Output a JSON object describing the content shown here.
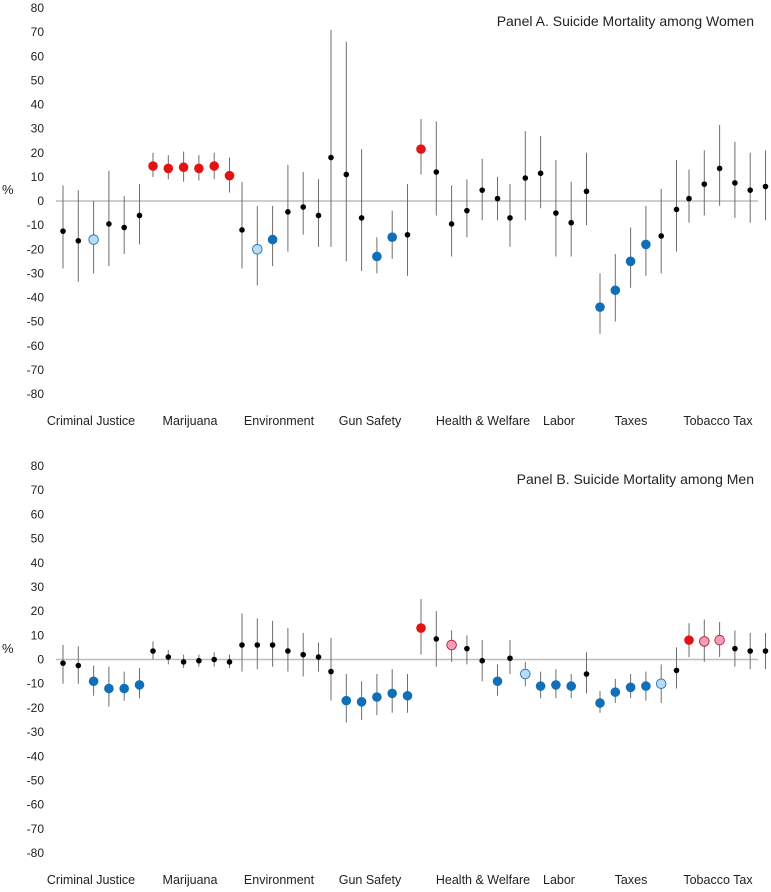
{
  "chart_data": [
    {
      "type": "scatter",
      "title": "Panel A. Suicide Mortality among Women",
      "ylabel": "%",
      "xlabel": "",
      "ylim": [
        -80,
        80
      ],
      "yticks": [
        80,
        70,
        60,
        50,
        40,
        30,
        20,
        10,
        0,
        -10,
        -20,
        -30,
        -40,
        -50,
        -60,
        -70,
        -80
      ],
      "categories": [
        "Criminal Justice",
        "Marijuana",
        "Environment",
        "Gun Safety",
        "Health & Welfare",
        "Labor",
        "Taxes",
        "Tobacco Tax"
      ],
      "colors": {
        "black": "#000000",
        "red": "#e41313",
        "pink": "#f2a1b2",
        "blue": "#0f6fb8",
        "lightblue": "#b7dcf5"
      },
      "groups": [
        {
          "category": "Criminal Justice",
          "points": [
            {
              "value": -12.5,
              "low": -28,
              "high": 6.5,
              "style": "black"
            },
            {
              "value": -16.5,
              "low": -33.5,
              "high": 4.5,
              "style": "black"
            },
            {
              "value": -16,
              "low": -30,
              "high": 0,
              "style": "lightblue"
            },
            {
              "value": -9.5,
              "low": -27,
              "high": 12.5,
              "style": "black"
            },
            {
              "value": -11,
              "low": -22,
              "high": 2,
              "style": "black"
            },
            {
              "value": -6,
              "low": -18,
              "high": 7,
              "style": "black"
            }
          ]
        },
        {
          "category": "Marijuana",
          "points": [
            {
              "value": 14.5,
              "low": 10,
              "high": 20,
              "style": "red"
            },
            {
              "value": 13.5,
              "low": 9,
              "high": 19,
              "style": "red"
            },
            {
              "value": 14,
              "low": 8,
              "high": 20.5,
              "style": "red"
            },
            {
              "value": 13.5,
              "low": 8.5,
              "high": 19,
              "style": "red"
            },
            {
              "value": 14.5,
              "low": 9,
              "high": 20,
              "style": "red"
            },
            {
              "value": 10.5,
              "low": 3.5,
              "high": 18,
              "style": "red"
            }
          ]
        },
        {
          "category": "Environment",
          "points": [
            {
              "value": -12,
              "low": -28,
              "high": 8,
              "style": "black"
            },
            {
              "value": -20,
              "low": -35,
              "high": -2,
              "style": "lightblue"
            },
            {
              "value": -16,
              "low": -27,
              "high": -2,
              "style": "blue"
            },
            {
              "value": -4.5,
              "low": -21,
              "high": 15,
              "style": "black"
            },
            {
              "value": -2.5,
              "low": -14,
              "high": 12,
              "style": "black"
            },
            {
              "value": -6,
              "low": -19,
              "high": 9,
              "style": "black"
            }
          ]
        },
        {
          "category": "Gun Safety",
          "points": [
            {
              "value": 18,
              "low": -19,
              "high": 71,
              "style": "black"
            },
            {
              "value": 11,
              "low": -25,
              "high": 66,
              "style": "black"
            },
            {
              "value": -7,
              "low": -29,
              "high": 21.5,
              "style": "black"
            },
            {
              "value": -23,
              "low": -30,
              "high": -15,
              "style": "blue"
            },
            {
              "value": -15,
              "low": -24,
              "high": -4,
              "style": "blue"
            },
            {
              "value": -14,
              "low": -31,
              "high": 7,
              "style": "black"
            }
          ]
        },
        {
          "category": "Health & Welfare",
          "points": [
            {
              "value": 21.5,
              "low": 11,
              "high": 34,
              "style": "red"
            },
            {
              "value": 12,
              "low": -6,
              "high": 33,
              "style": "black"
            },
            {
              "value": -9.5,
              "low": -23,
              "high": 6.5,
              "style": "black"
            },
            {
              "value": -4,
              "low": -15,
              "high": 9,
              "style": "black"
            },
            {
              "value": 4.5,
              "low": -8,
              "high": 17.5,
              "style": "black"
            },
            {
              "value": 1,
              "low": -8,
              "high": 10,
              "style": "black"
            }
          ]
        },
        {
          "category": "Labor",
          "points": [
            {
              "value": -7,
              "low": -19,
              "high": 7,
              "style": "black"
            },
            {
              "value": 9.5,
              "low": -8,
              "high": 29,
              "style": "black"
            },
            {
              "value": 11.5,
              "low": -3,
              "high": 27,
              "style": "black"
            },
            {
              "value": -5,
              "low": -23,
              "high": 17,
              "style": "black"
            },
            {
              "value": -9,
              "low": -23,
              "high": 8,
              "style": "black"
            },
            {
              "value": 4,
              "low": -10,
              "high": 20,
              "style": "black"
            }
          ]
        },
        {
          "category": "Taxes",
          "points": [
            {
              "value": -44,
              "low": -55,
              "high": -30,
              "style": "blue"
            },
            {
              "value": -37,
              "low": -50,
              "high": -22,
              "style": "blue"
            },
            {
              "value": -25,
              "low": -36,
              "high": -11,
              "style": "blue"
            },
            {
              "value": -18,
              "low": -31,
              "high": -2,
              "style": "blue"
            },
            {
              "value": -14.5,
              "low": -30,
              "high": 5,
              "style": "black"
            },
            {
              "value": -3.5,
              "low": -21,
              "high": 17,
              "style": "black"
            }
          ]
        },
        {
          "category": "Tobacco Tax",
          "points": [
            {
              "value": 1,
              "low": -9,
              "high": 13,
              "style": "black"
            },
            {
              "value": 7,
              "low": -6,
              "high": 21,
              "style": "black"
            },
            {
              "value": 13.5,
              "low": -2,
              "high": 31.5,
              "style": "black"
            },
            {
              "value": 7.5,
              "low": -7,
              "high": 24.5,
              "style": "black"
            },
            {
              "value": 4.5,
              "low": -9,
              "high": 20,
              "style": "black"
            },
            {
              "value": 6,
              "low": -8,
              "high": 21,
              "style": "black"
            }
          ]
        }
      ]
    },
    {
      "type": "scatter",
      "title": "Panel B. Suicide Mortality among Men",
      "ylabel": "%",
      "xlabel": "",
      "ylim": [
        -80,
        80
      ],
      "yticks": [
        80,
        70,
        60,
        50,
        40,
        30,
        20,
        10,
        0,
        -10,
        -20,
        -30,
        -40,
        -50,
        -60,
        -70,
        -80
      ],
      "categories": [
        "Criminal Justice",
        "Marijuana",
        "Environment",
        "Gun Safety",
        "Health & Welfare",
        "Labor",
        "Taxes",
        "Tobacco Tax"
      ],
      "colors": {
        "black": "#000000",
        "red": "#e41313",
        "pink": "#f2a1b2",
        "blue": "#0f6fb8",
        "lightblue": "#b7dcf5"
      },
      "groups": [
        {
          "category": "Criminal Justice",
          "points": [
            {
              "value": -1.5,
              "low": -10,
              "high": 6,
              "style": "black"
            },
            {
              "value": -2.5,
              "low": -10,
              "high": 5.5,
              "style": "black"
            },
            {
              "value": -9,
              "low": -15,
              "high": -2.5,
              "style": "blue"
            },
            {
              "value": -12,
              "low": -19.5,
              "high": -3,
              "style": "blue"
            },
            {
              "value": -12,
              "low": -17,
              "high": -5,
              "style": "blue"
            },
            {
              "value": -10.5,
              "low": -16,
              "high": -3.5,
              "style": "blue"
            }
          ]
        },
        {
          "category": "Marijuana",
          "points": [
            {
              "value": 3.5,
              "low": 0,
              "high": 7.5,
              "style": "black"
            },
            {
              "value": 1,
              "low": -2,
              "high": 4,
              "style": "black"
            },
            {
              "value": -1,
              "low": -3.5,
              "high": 2,
              "style": "black"
            },
            {
              "value": -0.5,
              "low": -3,
              "high": 2,
              "style": "black"
            },
            {
              "value": 0,
              "low": -3,
              "high": 3,
              "style": "black"
            },
            {
              "value": -1,
              "low": -3.5,
              "high": 2,
              "style": "black"
            }
          ]
        },
        {
          "category": "Environment",
          "points": [
            {
              "value": 6,
              "low": -5,
              "high": 19,
              "style": "black"
            },
            {
              "value": 6,
              "low": -4,
              "high": 17,
              "style": "black"
            },
            {
              "value": 6,
              "low": -3,
              "high": 16,
              "style": "black"
            },
            {
              "value": 3.5,
              "low": -5,
              "high": 13,
              "style": "black"
            },
            {
              "value": 2,
              "low": -7,
              "high": 11,
              "style": "black"
            },
            {
              "value": 1,
              "low": -5,
              "high": 7,
              "style": "black"
            }
          ]
        },
        {
          "category": "Gun Safety",
          "points": [
            {
              "value": -5,
              "low": -17,
              "high": 9,
              "style": "black"
            },
            {
              "value": -17,
              "low": -26,
              "high": -6,
              "style": "blue"
            },
            {
              "value": -17.5,
              "low": -25,
              "high": -9,
              "style": "blue"
            },
            {
              "value": -15.5,
              "low": -23,
              "high": -6,
              "style": "blue"
            },
            {
              "value": -14,
              "low": -22,
              "high": -4,
              "style": "blue"
            },
            {
              "value": -15,
              "low": -22,
              "high": -6,
              "style": "blue"
            }
          ]
        },
        {
          "category": "Health & Welfare",
          "points": [
            {
              "value": 13,
              "low": 2,
              "high": 25,
              "style": "red"
            },
            {
              "value": 8.5,
              "low": -3,
              "high": 20,
              "style": "black"
            },
            {
              "value": 6,
              "low": -1,
              "high": 12,
              "style": "pink"
            },
            {
              "value": 4.5,
              "low": -2,
              "high": 10,
              "style": "black"
            },
            {
              "value": -0.5,
              "low": -9,
              "high": 8,
              "style": "black"
            },
            {
              "value": -9,
              "low": -15,
              "high": -2,
              "style": "blue"
            }
          ]
        },
        {
          "category": "Labor",
          "points": [
            {
              "value": 0.5,
              "low": -6,
              "high": 8,
              "style": "black"
            },
            {
              "value": -6,
              "low": -11,
              "high": -1,
              "style": "lightblue"
            },
            {
              "value": -11,
              "low": -16,
              "high": -5,
              "style": "blue"
            },
            {
              "value": -10.5,
              "low": -16,
              "high": -4,
              "style": "blue"
            },
            {
              "value": -11,
              "low": -16,
              "high": -6,
              "style": "blue"
            },
            {
              "value": -6,
              "low": -14,
              "high": 3,
              "style": "black"
            }
          ]
        },
        {
          "category": "Taxes",
          "points": [
            {
              "value": -18,
              "low": -22,
              "high": -13,
              "style": "blue"
            },
            {
              "value": -13.5,
              "low": -18,
              "high": -8,
              "style": "blue"
            },
            {
              "value": -11.5,
              "low": -16,
              "high": -6,
              "style": "blue"
            },
            {
              "value": -11,
              "low": -17,
              "high": -5,
              "style": "blue"
            },
            {
              "value": -10,
              "low": -18,
              "high": -2,
              "style": "lightblue"
            },
            {
              "value": -4.5,
              "low": -12,
              "high": 5,
              "style": "black"
            }
          ]
        },
        {
          "category": "Tobacco Tax",
          "points": [
            {
              "value": 8,
              "low": 1,
              "high": 15,
              "style": "red"
            },
            {
              "value": 7.5,
              "low": -1,
              "high": 16.5,
              "style": "pink"
            },
            {
              "value": 8,
              "low": 1,
              "high": 15.5,
              "style": "pink"
            },
            {
              "value": 4.5,
              "low": -3,
              "high": 12,
              "style": "black"
            },
            {
              "value": 3.5,
              "low": -4,
              "high": 11,
              "style": "black"
            },
            {
              "value": 3.5,
              "low": -4,
              "high": 11,
              "style": "black"
            }
          ]
        }
      ]
    }
  ]
}
